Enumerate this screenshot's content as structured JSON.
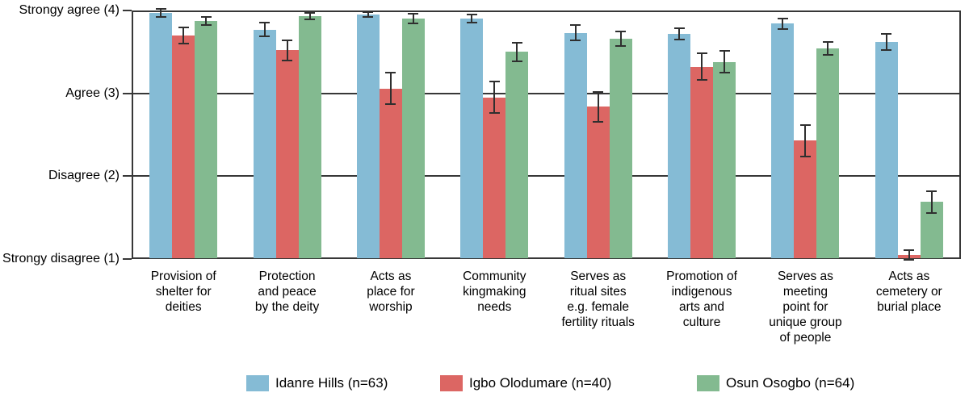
{
  "chart_data": {
    "type": "bar",
    "title": "",
    "grid": true,
    "error_bars": true,
    "legend_position": "bottom",
    "y_axis": {
      "min": 1,
      "max": 4,
      "ticks": [
        {
          "value": 4,
          "label": "Strongy agree (4)"
        },
        {
          "value": 3,
          "label": "Agree (3)"
        },
        {
          "value": 2,
          "label": "Disagree (2)"
        },
        {
          "value": 1,
          "label": "Strongy disagree (1)"
        }
      ]
    },
    "categories": [
      "Provision of shelter for deities",
      "Protection and peace by the deity",
      "Acts as place for worship",
      "Community kingmaking needs",
      "Serves as ritual sites e.g. female fertility rituals",
      "Promotion of indigenous arts and culture",
      "Serves as meeting point for unique group of people",
      "Acts as cemetery or burial place"
    ],
    "category_label_lines": [
      [
        "Provision of",
        "shelter for",
        "deities"
      ],
      [
        "Protection",
        "and peace",
        "by the deity"
      ],
      [
        "Acts as",
        "place for",
        "worship"
      ],
      [
        "Community",
        "kingmaking",
        "needs"
      ],
      [
        "Serves as",
        "ritual sites",
        "e.g. female",
        "fertility rituals"
      ],
      [
        "Promotion of",
        "indigenous",
        "arts and",
        "culture"
      ],
      [
        "Serves as",
        "meeting",
        "point for",
        "unique group",
        "of people"
      ],
      [
        "Acts as",
        "cemetery or",
        "burial place"
      ]
    ],
    "series": [
      {
        "name": "Idanre Hills (n=63)",
        "color": "#85BBD5",
        "values": [
          3.97,
          3.77,
          3.95,
          3.9,
          3.73,
          3.72,
          3.84,
          3.62
        ],
        "errors": [
          0.06,
          0.09,
          0.04,
          0.06,
          0.1,
          0.08,
          0.07,
          0.11
        ]
      },
      {
        "name": "Igbo Olodumare (n=40)",
        "color": "#DC6663",
        "values": [
          3.7,
          3.52,
          3.06,
          2.95,
          2.84,
          3.32,
          2.43,
          1.05
        ],
        "errors": [
          0.11,
          0.13,
          0.2,
          0.2,
          0.19,
          0.17,
          0.2,
          0.07
        ]
      },
      {
        "name": "Osun Osogbo (n=64)",
        "color": "#83BA90",
        "values": [
          3.87,
          3.93,
          3.9,
          3.5,
          3.66,
          3.38,
          3.54,
          1.69
        ],
        "errors": [
          0.06,
          0.05,
          0.07,
          0.12,
          0.1,
          0.14,
          0.09,
          0.14
        ]
      }
    ]
  },
  "styles": {
    "axis_color": "#373737",
    "error_bar_color": "#2f2f2f",
    "text_color": "#000000",
    "background": "#ffffff",
    "series_colors": [
      "#85BBD5",
      "#DC6663",
      "#83BA90"
    ]
  }
}
